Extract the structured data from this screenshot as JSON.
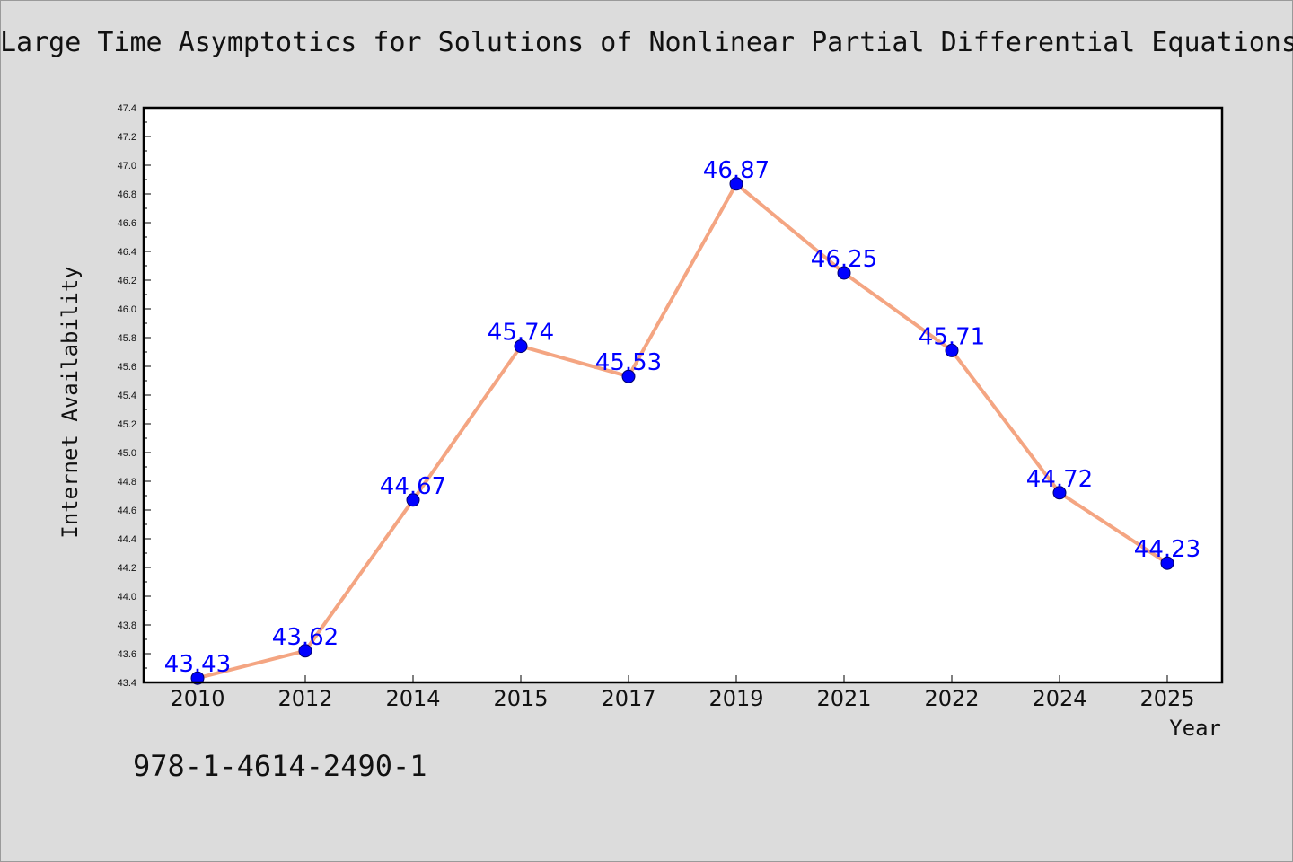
{
  "chart_data": {
    "type": "line",
    "title": "Large Time Asymptotics for Solutions of Nonlinear Partial Differential Equations",
    "xlabel": "Year",
    "ylabel": "Internet Availability",
    "categories": [
      "2010",
      "2012",
      "2014",
      "2015",
      "2017",
      "2019",
      "2021",
      "2022",
      "2024",
      "2025"
    ],
    "series": [
      {
        "values": [
          43.43,
          43.62,
          44.67,
          45.74,
          45.53,
          46.87,
          46.25,
          45.71,
          44.72,
          44.23
        ],
        "labels": [
          "43.43",
          "43.62",
          "44.67",
          "45.74",
          "45.53",
          "46.87",
          "46.25",
          "45.71",
          "44.72",
          "44.23"
        ],
        "line_color": "#f4a582",
        "marker_color": "#0000ff"
      }
    ],
    "ylim": [
      43.4,
      47.4
    ],
    "yticks": [
      "43.4",
      "43.6",
      "43.8",
      "44.0",
      "44.2",
      "44.4",
      "44.6",
      "44.8",
      "45.0",
      "45.2",
      "45.4",
      "45.6",
      "45.8",
      "46.0",
      "46.2",
      "46.4",
      "46.6",
      "46.8",
      "47.0",
      "47.2",
      "47.4"
    ],
    "grid": false,
    "legend": "none",
    "label_color": "#0000ff",
    "background": "#ffffff"
  },
  "footer": {
    "isbn": "978-1-4614-2490-1"
  }
}
